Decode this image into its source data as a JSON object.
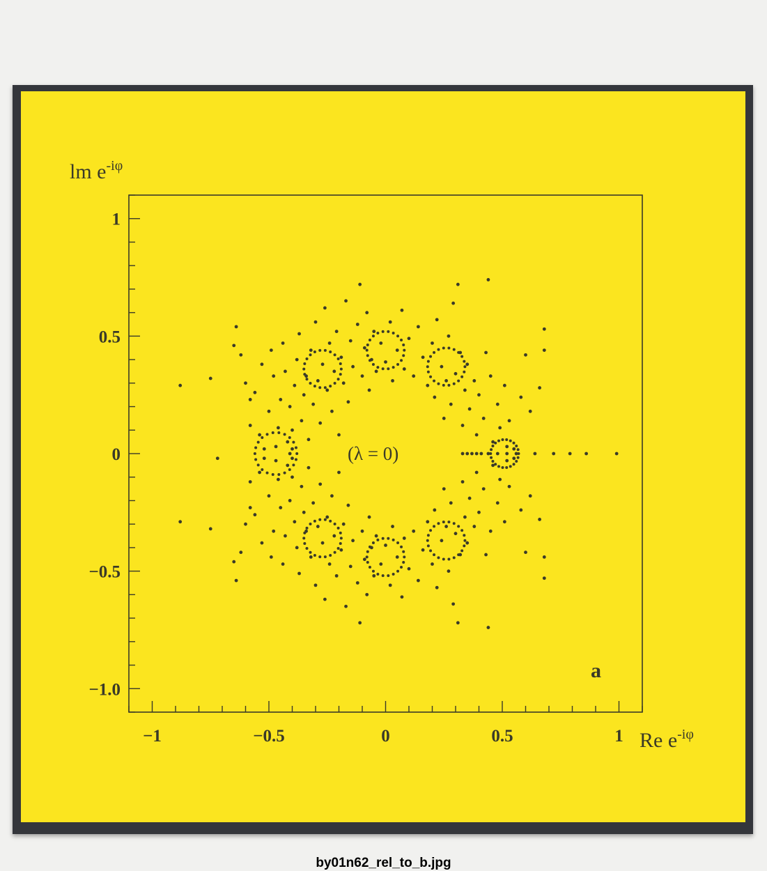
{
  "caption": "by01n62_rel_to_b.jpg",
  "colors": {
    "panel": "#fbe51f",
    "ink": "#3a3a28",
    "frame": "#34363b"
  },
  "chart_data": {
    "type": "scatter",
    "xlabel": "Re e",
    "xlabel_sup": "-iφ",
    "ylabel": "lm e",
    "ylabel_sup": "-iφ",
    "xlim": [
      -1.1,
      1.1
    ],
    "ylim": [
      -1.1,
      1.1
    ],
    "xticks": [
      {
        "value": -1,
        "label": "−1"
      },
      {
        "value": -0.5,
        "label": "−0.5"
      },
      {
        "value": 0,
        "label": "0"
      },
      {
        "value": 0.5,
        "label": "0.5"
      },
      {
        "value": 1,
        "label": "1"
      }
    ],
    "yticks": [
      {
        "value": 1,
        "label": "1"
      },
      {
        "value": 0.5,
        "label": "0.5"
      },
      {
        "value": 0,
        "label": "0"
      },
      {
        "value": -0.5,
        "label": "−0.5"
      },
      {
        "value": -1,
        "label": "−1.0"
      }
    ],
    "annotation": "(λ = 0)",
    "panel_label": "a",
    "grid": false,
    "points": [
      [
        -0.88,
        0.29
      ],
      [
        -0.75,
        0.32
      ],
      [
        -0.72,
        -0.02
      ],
      [
        -0.65,
        0.46
      ],
      [
        -0.64,
        0.54
      ],
      [
        -0.62,
        0.42
      ],
      [
        -0.6,
        0.3
      ],
      [
        -0.58,
        0.12
      ],
      [
        -0.58,
        0.23
      ],
      [
        -0.56,
        0.26
      ],
      [
        -0.54,
        0.08
      ],
      [
        -0.53,
        0.38
      ],
      [
        -0.52,
        0.02
      ],
      [
        -0.5,
        0.18
      ],
      [
        -0.49,
        0.44
      ],
      [
        -0.48,
        0.33
      ],
      [
        -0.47,
        0.03
      ],
      [
        -0.46,
        0.11
      ],
      [
        -0.45,
        0.23
      ],
      [
        -0.44,
        0.47
      ],
      [
        -0.43,
        0.35
      ],
      [
        -0.42,
        0.05
      ],
      [
        -0.41,
        0.2
      ],
      [
        -0.4,
        0.1
      ],
      [
        -0.39,
        0.29
      ],
      [
        -0.38,
        0.4
      ],
      [
        -0.37,
        0.51
      ],
      [
        -0.36,
        0.14
      ],
      [
        -0.35,
        0.25
      ],
      [
        -0.34,
        0.33
      ],
      [
        -0.33,
        0.06
      ],
      [
        -0.32,
        0.44
      ],
      [
        -0.31,
        0.21
      ],
      [
        -0.3,
        0.56
      ],
      [
        -0.29,
        0.31
      ],
      [
        -0.28,
        0.13
      ],
      [
        -0.27,
        0.38
      ],
      [
        -0.26,
        0.62
      ],
      [
        -0.25,
        0.27
      ],
      [
        -0.24,
        0.47
      ],
      [
        -0.23,
        0.18
      ],
      [
        -0.22,
        0.35
      ],
      [
        -0.21,
        0.52
      ],
      [
        -0.2,
        0.08
      ],
      [
        -0.19,
        0.41
      ],
      [
        -0.18,
        0.3
      ],
      [
        -0.17,
        0.65
      ],
      [
        -0.16,
        0.22
      ],
      [
        -0.15,
        0.48
      ],
      [
        -0.14,
        0.37
      ],
      [
        -0.12,
        0.55
      ],
      [
        -0.11,
        0.72
      ],
      [
        -0.1,
        0.33
      ],
      [
        -0.09,
        0.45
      ],
      [
        -0.08,
        0.6
      ],
      [
        -0.07,
        0.27
      ],
      [
        -0.06,
        0.4
      ],
      [
        -0.05,
        0.52
      ],
      [
        -0.04,
        0.35
      ],
      [
        -0.02,
        0.47
      ],
      [
        0.0,
        0.39
      ],
      [
        0.02,
        0.56
      ],
      [
        0.03,
        0.31
      ],
      [
        0.05,
        0.44
      ],
      [
        0.07,
        0.61
      ],
      [
        0.08,
        0.36
      ],
      [
        0.1,
        0.49
      ],
      [
        0.12,
        0.33
      ],
      [
        0.14,
        0.54
      ],
      [
        0.16,
        0.41
      ],
      [
        0.18,
        0.29
      ],
      [
        0.2,
        0.47
      ],
      [
        0.21,
        0.24
      ],
      [
        0.22,
        0.57
      ],
      [
        0.24,
        0.37
      ],
      [
        0.25,
        0.15
      ],
      [
        0.26,
        0.31
      ],
      [
        0.27,
        0.5
      ],
      [
        0.28,
        0.21
      ],
      [
        0.29,
        0.64
      ],
      [
        0.3,
        0.34
      ],
      [
        0.31,
        0.72
      ],
      [
        0.32,
        0.43
      ],
      [
        0.33,
        0.12
      ],
      [
        0.34,
        0.27
      ],
      [
        0.35,
        0.38
      ],
      [
        0.36,
        0.19
      ],
      [
        0.38,
        0.31
      ],
      [
        0.39,
        0.08
      ],
      [
        0.4,
        0.25
      ],
      [
        0.42,
        0.15
      ],
      [
        0.43,
        0.43
      ],
      [
        0.44,
        0.74
      ],
      [
        0.45,
        0.33
      ],
      [
        0.46,
        0.05
      ],
      [
        0.48,
        0.21
      ],
      [
        0.49,
        0.11
      ],
      [
        0.51,
        0.29
      ],
      [
        0.52,
        0.03
      ],
      [
        0.53,
        0.14
      ],
      [
        0.55,
        0.02
      ],
      [
        0.58,
        0.24
      ],
      [
        0.6,
        0.42
      ],
      [
        0.62,
        0.18
      ],
      [
        0.66,
        0.28
      ],
      [
        0.68,
        0.44
      ],
      [
        0.68,
        0.53
      ],
      [
        -0.88,
        -0.29
      ],
      [
        -0.75,
        -0.32
      ],
      [
        -0.65,
        -0.46
      ],
      [
        -0.64,
        -0.54
      ],
      [
        -0.62,
        -0.42
      ],
      [
        -0.6,
        -0.3
      ],
      [
        -0.58,
        -0.12
      ],
      [
        -0.58,
        -0.23
      ],
      [
        -0.56,
        -0.26
      ],
      [
        -0.54,
        -0.08
      ],
      [
        -0.53,
        -0.38
      ],
      [
        -0.52,
        -0.02
      ],
      [
        -0.5,
        -0.18
      ],
      [
        -0.49,
        -0.44
      ],
      [
        -0.48,
        -0.33
      ],
      [
        -0.47,
        -0.03
      ],
      [
        -0.46,
        -0.11
      ],
      [
        -0.45,
        -0.23
      ],
      [
        -0.44,
        -0.47
      ],
      [
        -0.43,
        -0.35
      ],
      [
        -0.42,
        -0.05
      ],
      [
        -0.41,
        -0.2
      ],
      [
        -0.4,
        -0.1
      ],
      [
        -0.39,
        -0.29
      ],
      [
        -0.38,
        -0.4
      ],
      [
        -0.37,
        -0.51
      ],
      [
        -0.36,
        -0.14
      ],
      [
        -0.35,
        -0.25
      ],
      [
        -0.34,
        -0.33
      ],
      [
        -0.33,
        -0.06
      ],
      [
        -0.32,
        -0.44
      ],
      [
        -0.31,
        -0.21
      ],
      [
        -0.3,
        -0.56
      ],
      [
        -0.29,
        -0.31
      ],
      [
        -0.28,
        -0.13
      ],
      [
        -0.27,
        -0.38
      ],
      [
        -0.26,
        -0.62
      ],
      [
        -0.25,
        -0.27
      ],
      [
        -0.24,
        -0.47
      ],
      [
        -0.23,
        -0.18
      ],
      [
        -0.22,
        -0.35
      ],
      [
        -0.21,
        -0.52
      ],
      [
        -0.2,
        -0.08
      ],
      [
        -0.19,
        -0.41
      ],
      [
        -0.18,
        -0.3
      ],
      [
        -0.17,
        -0.65
      ],
      [
        -0.16,
        -0.22
      ],
      [
        -0.15,
        -0.48
      ],
      [
        -0.14,
        -0.37
      ],
      [
        -0.12,
        -0.55
      ],
      [
        -0.11,
        -0.72
      ],
      [
        -0.1,
        -0.33
      ],
      [
        -0.09,
        -0.45
      ],
      [
        -0.08,
        -0.6
      ],
      [
        -0.07,
        -0.27
      ],
      [
        -0.06,
        -0.4
      ],
      [
        -0.05,
        -0.52
      ],
      [
        -0.04,
        -0.35
      ],
      [
        -0.02,
        -0.47
      ],
      [
        0.0,
        -0.39
      ],
      [
        0.02,
        -0.56
      ],
      [
        0.03,
        -0.31
      ],
      [
        0.05,
        -0.44
      ],
      [
        0.07,
        -0.61
      ],
      [
        0.08,
        -0.36
      ],
      [
        0.1,
        -0.49
      ],
      [
        0.12,
        -0.33
      ],
      [
        0.14,
        -0.54
      ],
      [
        0.16,
        -0.41
      ],
      [
        0.18,
        -0.29
      ],
      [
        0.2,
        -0.47
      ],
      [
        0.21,
        -0.24
      ],
      [
        0.22,
        -0.57
      ],
      [
        0.24,
        -0.37
      ],
      [
        0.25,
        -0.15
      ],
      [
        0.26,
        -0.31
      ],
      [
        0.27,
        -0.5
      ],
      [
        0.28,
        -0.21
      ],
      [
        0.29,
        -0.64
      ],
      [
        0.3,
        -0.34
      ],
      [
        0.31,
        -0.72
      ],
      [
        0.32,
        -0.43
      ],
      [
        0.33,
        -0.12
      ],
      [
        0.34,
        -0.27
      ],
      [
        0.35,
        -0.38
      ],
      [
        0.36,
        -0.19
      ],
      [
        0.38,
        -0.31
      ],
      [
        0.39,
        -0.08
      ],
      [
        0.4,
        -0.25
      ],
      [
        0.42,
        -0.15
      ],
      [
        0.43,
        -0.43
      ],
      [
        0.44,
        -0.74
      ],
      [
        0.45,
        -0.33
      ],
      [
        0.46,
        -0.05
      ],
      [
        0.48,
        -0.21
      ],
      [
        0.49,
        -0.11
      ],
      [
        0.51,
        -0.29
      ],
      [
        0.52,
        -0.03
      ],
      [
        0.53,
        -0.14
      ],
      [
        0.55,
        -0.02
      ],
      [
        0.58,
        -0.24
      ],
      [
        0.6,
        -0.42
      ],
      [
        0.62,
        -0.18
      ],
      [
        0.66,
        -0.28
      ],
      [
        0.68,
        -0.44
      ],
      [
        0.68,
        -0.53
      ],
      [
        0.33,
        0.0
      ],
      [
        0.35,
        0.0
      ],
      [
        0.37,
        0.0
      ],
      [
        0.39,
        0.0
      ],
      [
        0.41,
        0.0
      ],
      [
        0.44,
        0.0
      ],
      [
        0.48,
        0.0
      ],
      [
        0.52,
        0.0
      ],
      [
        0.56,
        0.0
      ],
      [
        0.64,
        0.0
      ],
      [
        0.72,
        0.0
      ],
      [
        0.79,
        0.0
      ],
      [
        0.86,
        0.0
      ],
      [
        0.99,
        0.0
      ],
      [
        -0.41,
        0.0
      ],
      [
        -0.4,
        0.02
      ],
      [
        -0.4,
        -0.02
      ]
    ],
    "arcs": [
      {
        "cx": -0.47,
        "cy": 0.0,
        "r": 0.09
      },
      {
        "cx": 0.0,
        "cy": 0.44,
        "r": 0.08
      },
      {
        "cx": 0.0,
        "cy": -0.44,
        "r": 0.08
      },
      {
        "cx": -0.27,
        "cy": 0.36,
        "r": 0.08
      },
      {
        "cx": -0.27,
        "cy": -0.36,
        "r": 0.08
      },
      {
        "cx": 0.26,
        "cy": 0.37,
        "r": 0.08
      },
      {
        "cx": 0.26,
        "cy": -0.37,
        "r": 0.08
      },
      {
        "cx": 0.51,
        "cy": 0.0,
        "r": 0.06
      }
    ]
  }
}
